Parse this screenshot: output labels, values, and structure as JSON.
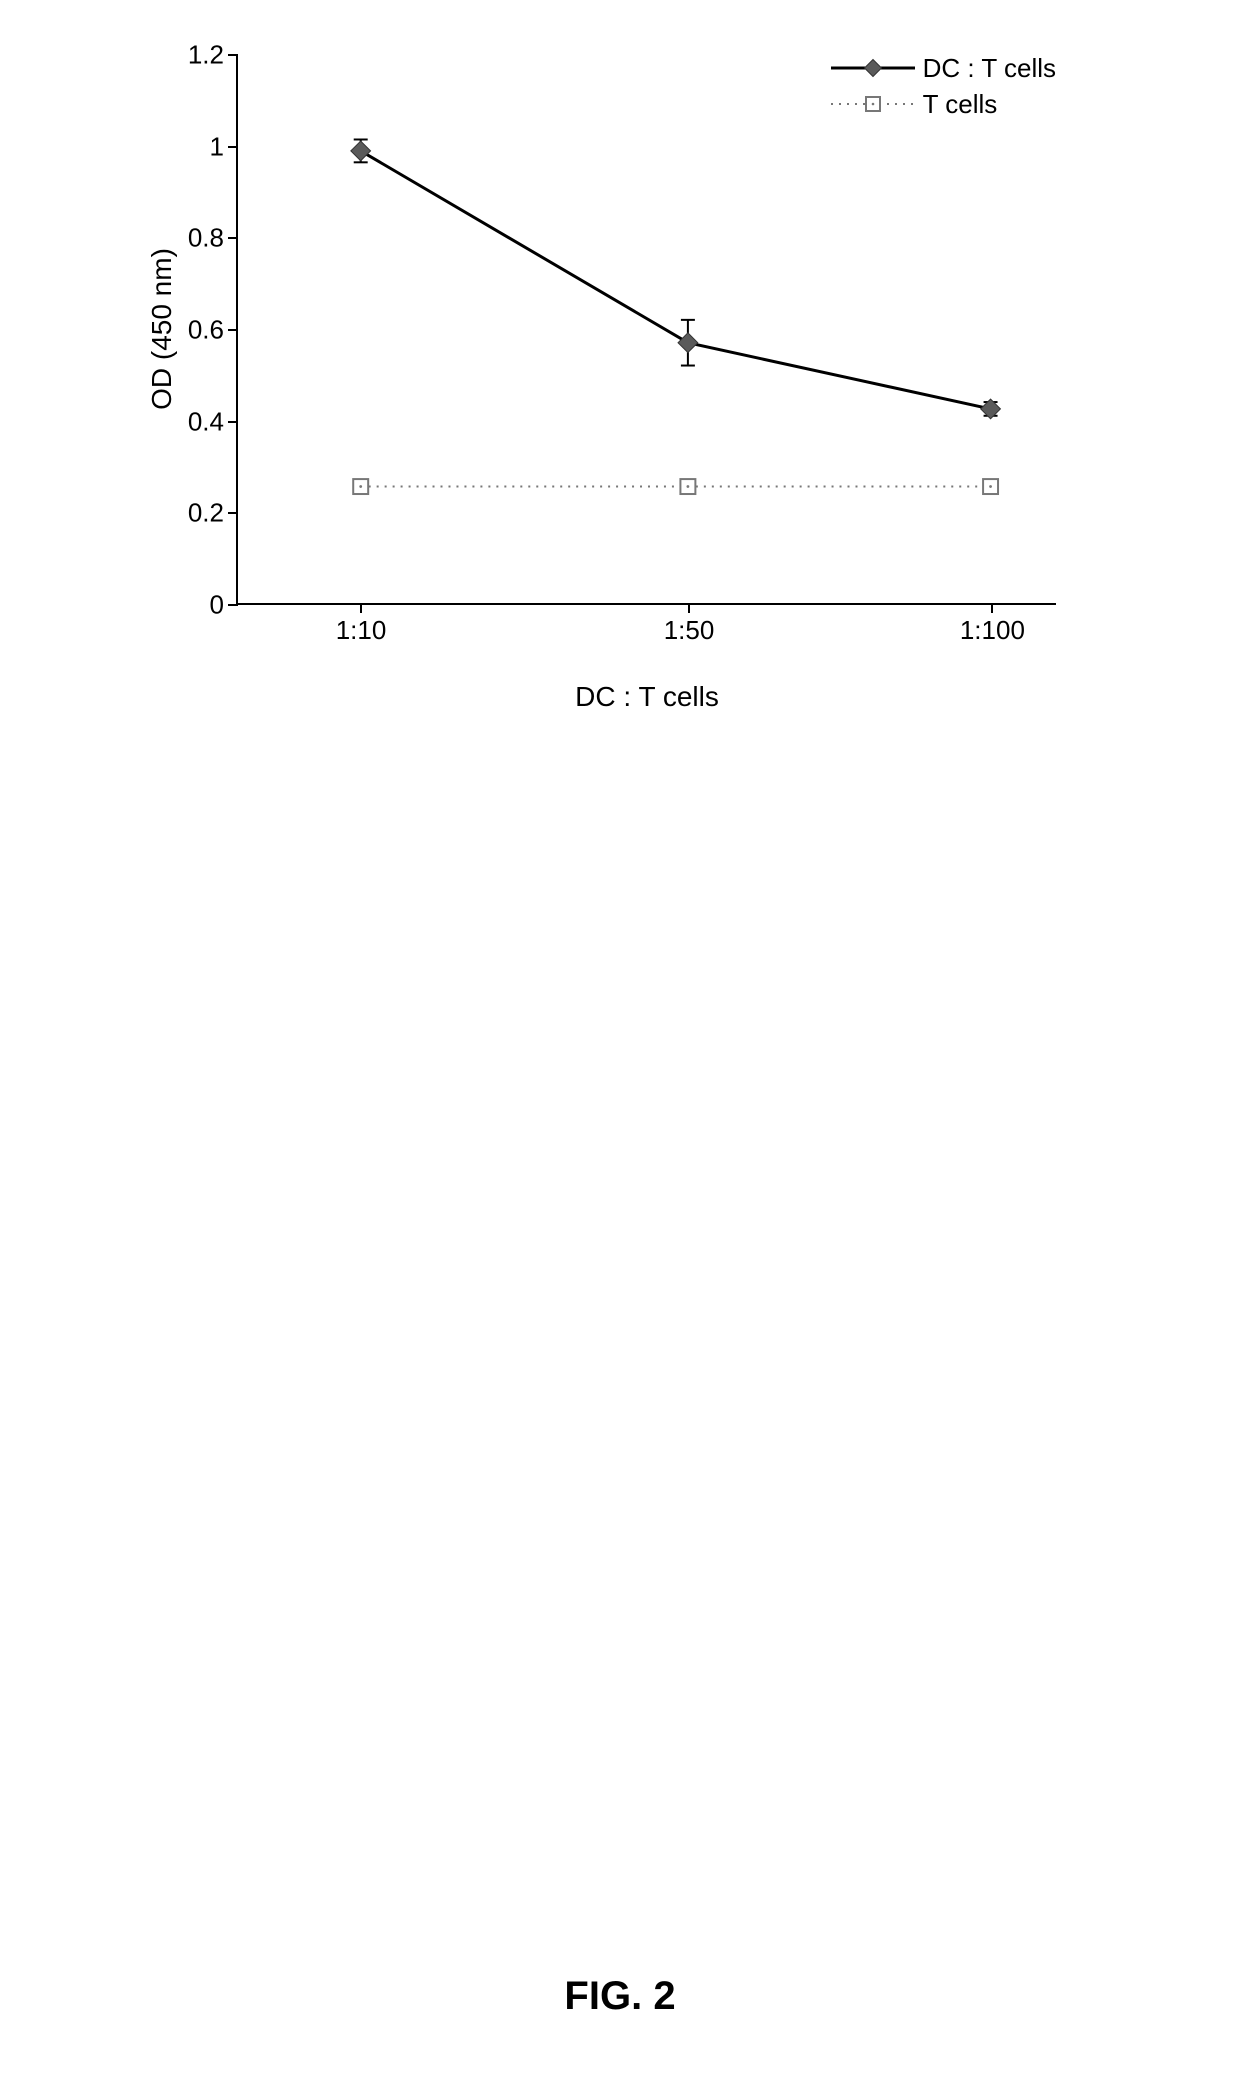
{
  "chart": {
    "type": "line",
    "ylabel": "OD (450 nm)",
    "xlabel": "DC : T cells",
    "label_fontsize": 28,
    "tick_fontsize": 26,
    "ylim": [
      0,
      1.2
    ],
    "ytick_step": 0.2,
    "yticks": [
      0,
      0.2,
      0.4,
      0.6,
      0.8,
      1,
      1.2
    ],
    "x_categories": [
      "1:10",
      "1:50",
      "1:100"
    ],
    "x_positions": [
      0.15,
      0.55,
      0.92
    ],
    "background_color": "#ffffff",
    "axis_color": "#000000",
    "series": [
      {
        "name": "DC : T cells",
        "values": [
          0.99,
          0.57,
          0.425
        ],
        "errors": [
          0.025,
          0.05,
          0.015
        ],
        "line_color": "#000000",
        "line_width": 3,
        "line_dash": "none",
        "marker": "diamond",
        "marker_size": 14,
        "marker_fill": "#5a5a5a",
        "marker_stroke": "#333333"
      },
      {
        "name": "T cells",
        "values": [
          0.255,
          0.255,
          0.255
        ],
        "errors": [
          0,
          0,
          0
        ],
        "line_color": "#777777",
        "line_width": 2,
        "line_dash": "2,6",
        "marker": "square",
        "marker_size": 15,
        "marker_fill": "#ffffff",
        "marker_stroke": "#777777"
      }
    ],
    "legend": {
      "position": "top-right",
      "fontsize": 26
    }
  },
  "caption": "FIG. 2"
}
